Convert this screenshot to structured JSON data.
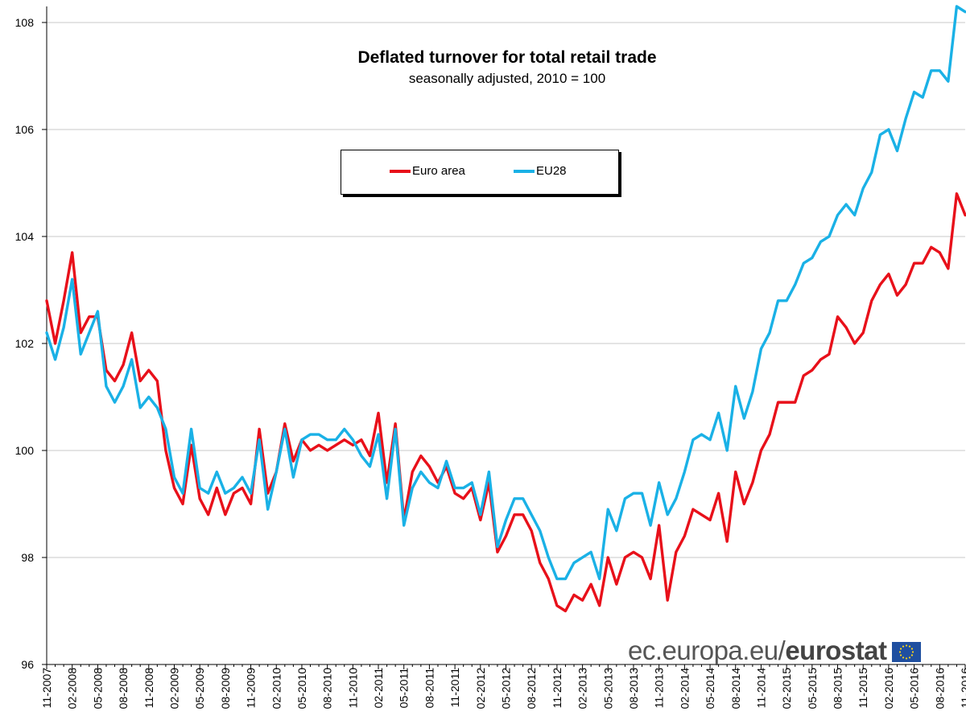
{
  "chart_data": {
    "type": "line",
    "title": "Deflated turnover for total retail trade",
    "subtitle": "seasonally adjusted, 2010 = 100",
    "xlabel": "",
    "ylabel": "",
    "ylim": [
      96,
      108.3
    ],
    "yticks": [
      96,
      98,
      100,
      102,
      104,
      106,
      108
    ],
    "grid": true,
    "legend_position": "top-center",
    "x_start": "11-2007",
    "x_tick_labels": [
      "11-2007",
      "02-2008",
      "05-2008",
      "08-2008",
      "11-2008",
      "02-2009",
      "05-2009",
      "08-2009",
      "11-2009",
      "02-2010",
      "05-2010",
      "08-2010",
      "11-2010",
      "02-2011",
      "05-2011",
      "08-2011",
      "11-2011",
      "02-2012",
      "05-2012",
      "08-2012",
      "11-2012",
      "02-2013",
      "05-2013",
      "08-2013",
      "11-2013",
      "02-2014",
      "05-2014",
      "08-2014",
      "11-2014",
      "02-2015",
      "05-2015",
      "08-2015",
      "11-2015",
      "02-2016",
      "05-2016",
      "08-2016",
      "11-2016"
    ],
    "series": [
      {
        "name": "Euro area",
        "color": "#e8101a",
        "values": [
          102.8,
          102.0,
          102.8,
          103.7,
          102.2,
          102.5,
          102.5,
          101.5,
          101.3,
          101.6,
          102.2,
          101.3,
          101.5,
          101.3,
          100.0,
          99.3,
          99.0,
          100.1,
          99.1,
          98.8,
          99.3,
          98.8,
          99.2,
          99.3,
          99.0,
          100.4,
          99.2,
          99.6,
          100.5,
          99.8,
          100.2,
          100.0,
          100.1,
          100.0,
          100.1,
          100.2,
          100.1,
          100.2,
          99.9,
          100.7,
          99.4,
          100.5,
          98.7,
          99.6,
          99.9,
          99.7,
          99.4,
          99.7,
          99.2,
          99.1,
          99.3,
          98.7,
          99.4,
          98.1,
          98.4,
          98.8,
          98.8,
          98.5,
          97.9,
          97.6,
          97.1,
          97.0,
          97.3,
          97.2,
          97.5,
          97.1,
          98.0,
          97.5,
          98.0,
          98.1,
          98.0,
          97.6,
          98.6,
          97.2,
          98.1,
          98.4,
          98.9,
          98.8,
          98.7,
          99.2,
          98.3,
          99.6,
          99.0,
          99.4,
          100.0,
          100.3,
          100.9,
          100.9,
          100.9,
          101.4,
          101.5,
          101.7,
          101.8,
          102.5,
          102.3,
          102.0,
          102.2,
          102.8,
          103.1,
          103.3,
          102.9,
          103.1,
          103.5,
          103.5,
          103.8,
          103.7,
          103.4,
          104.8,
          104.4
        ]
      },
      {
        "name": "EU28",
        "color": "#1ab1e6",
        "values": [
          102.2,
          101.7,
          102.3,
          103.2,
          101.8,
          102.2,
          102.6,
          101.2,
          100.9,
          101.2,
          101.7,
          100.8,
          101.0,
          100.8,
          100.4,
          99.5,
          99.2,
          100.4,
          99.3,
          99.2,
          99.6,
          99.2,
          99.3,
          99.5,
          99.2,
          100.2,
          98.9,
          99.6,
          100.4,
          99.5,
          100.2,
          100.3,
          100.3,
          100.2,
          100.2,
          100.4,
          100.2,
          99.9,
          99.7,
          100.3,
          99.1,
          100.4,
          98.6,
          99.3,
          99.6,
          99.4,
          99.3,
          99.8,
          99.3,
          99.3,
          99.4,
          98.8,
          99.6,
          98.2,
          98.7,
          99.1,
          99.1,
          98.8,
          98.5,
          98.0,
          97.6,
          97.6,
          97.9,
          98.0,
          98.1,
          97.6,
          98.9,
          98.5,
          99.1,
          99.2,
          99.2,
          98.6,
          99.4,
          98.8,
          99.1,
          99.6,
          100.2,
          100.3,
          100.2,
          100.7,
          100.0,
          101.2,
          100.6,
          101.1,
          101.9,
          102.2,
          102.8,
          102.8,
          103.1,
          103.5,
          103.6,
          103.9,
          104.0,
          104.4,
          104.6,
          104.4,
          104.9,
          105.2,
          105.9,
          106.0,
          105.6,
          106.2,
          106.7,
          106.6,
          107.1,
          107.1,
          106.9,
          108.3,
          108.2
        ]
      }
    ]
  },
  "branding": {
    "prefix": "ec.europa.eu/",
    "name": "eurostat",
    "flag_icon": "eu-flag-icon"
  }
}
